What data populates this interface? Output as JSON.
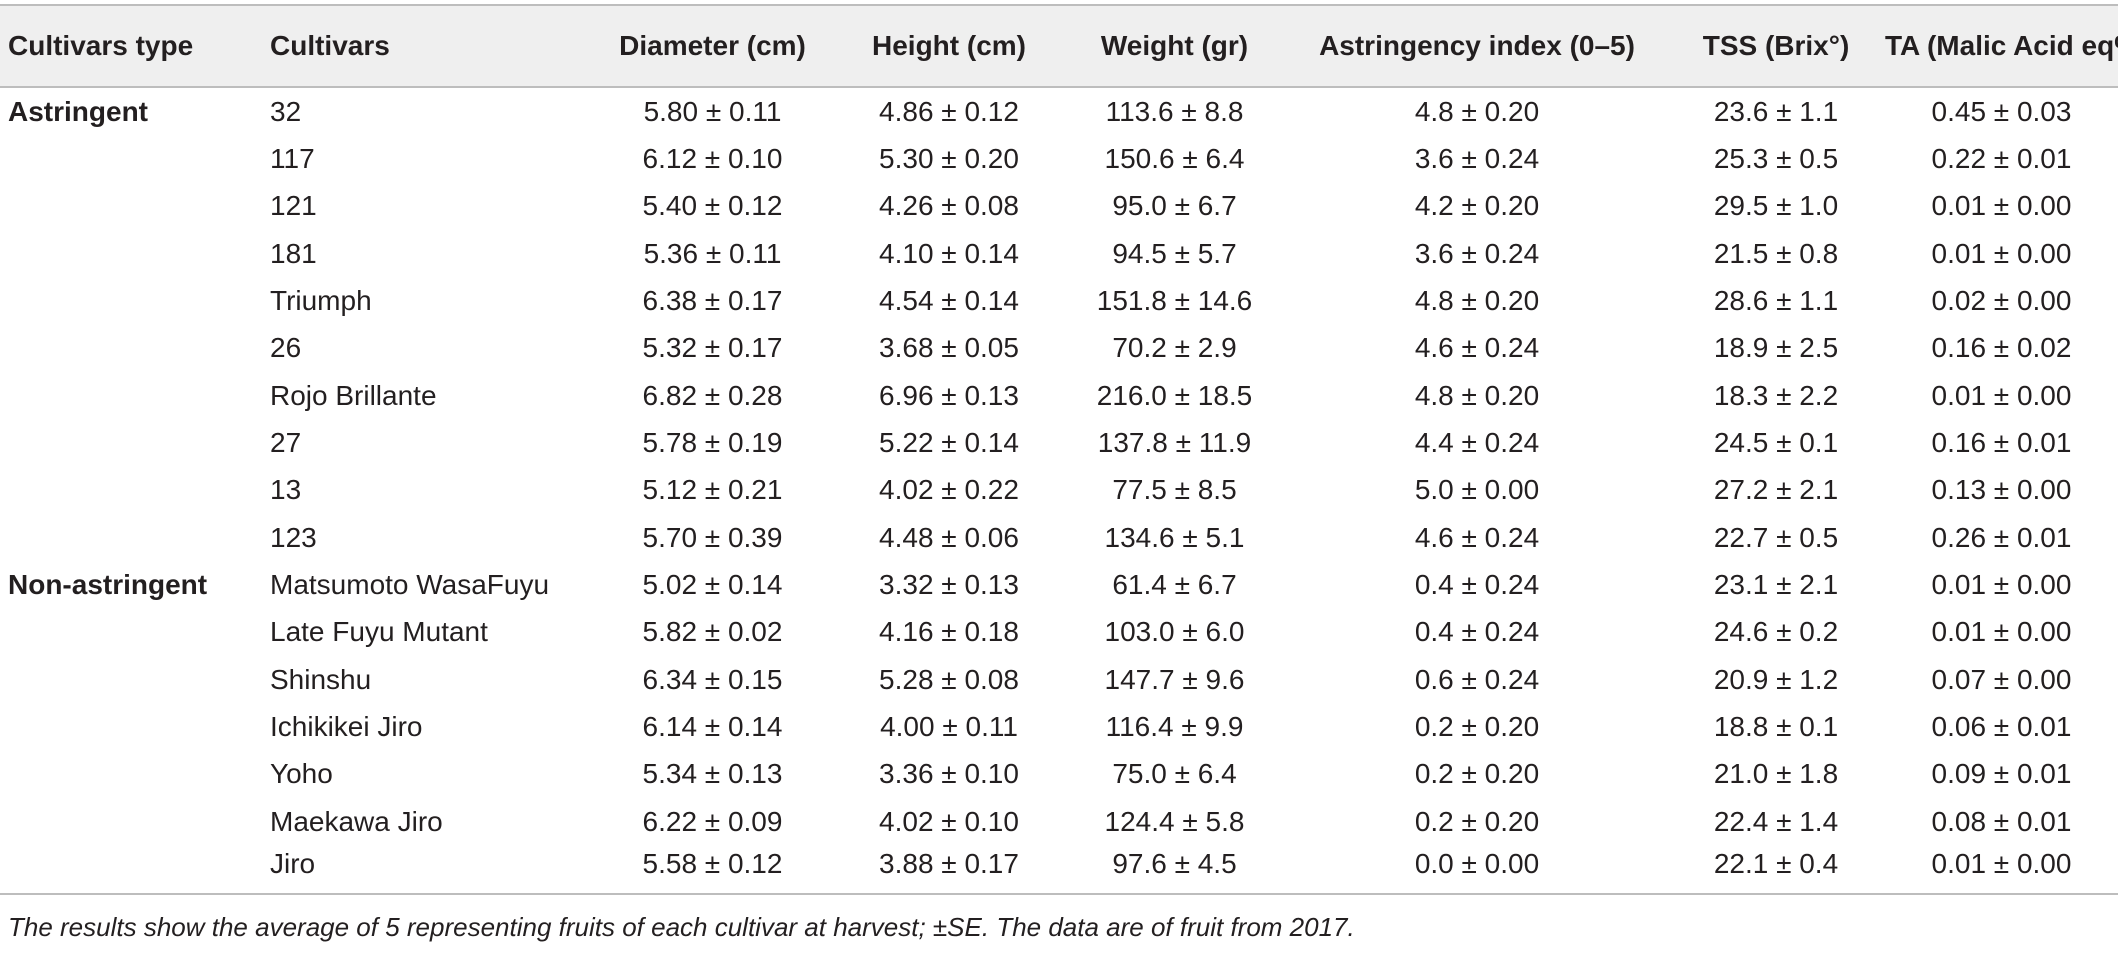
{
  "table": {
    "headers": {
      "cultivars_type": "Cultivars type",
      "cultivars": "Cultivars",
      "diameter": "Diameter (cm)",
      "height": "Height (cm)",
      "weight": "Weight (gr)",
      "astringency": "Astringency index (0–5)",
      "tss": "TSS (Brix°)",
      "ta": "TA (Malic Acid eq%)"
    },
    "rows": [
      {
        "type": "Astringent",
        "cultivar": "32",
        "diameter": "5.80 ± 0.11",
        "height": "4.86 ± 0.12",
        "weight": "113.6 ± 8.8",
        "astringency": "4.8 ± 0.20",
        "tss": "23.6 ± 1.1",
        "ta": "0.45 ± 0.03"
      },
      {
        "type": "",
        "cultivar": "117",
        "diameter": "6.12 ± 0.10",
        "height": "5.30 ± 0.20",
        "weight": "150.6 ± 6.4",
        "astringency": "3.6 ± 0.24",
        "tss": "25.3 ± 0.5",
        "ta": "0.22 ± 0.01"
      },
      {
        "type": "",
        "cultivar": "121",
        "diameter": "5.40 ± 0.12",
        "height": "4.26 ± 0.08",
        "weight": "95.0 ± 6.7",
        "astringency": "4.2 ± 0.20",
        "tss": "29.5 ± 1.0",
        "ta": "0.01 ± 0.00"
      },
      {
        "type": "",
        "cultivar": "181",
        "diameter": "5.36 ± 0.11",
        "height": "4.10 ± 0.14",
        "weight": "94.5 ± 5.7",
        "astringency": "3.6 ± 0.24",
        "tss": "21.5 ± 0.8",
        "ta": "0.01 ± 0.00"
      },
      {
        "type": "",
        "cultivar": "Triumph",
        "diameter": "6.38 ± 0.17",
        "height": "4.54 ± 0.14",
        "weight": "151.8 ± 14.6",
        "astringency": "4.8 ± 0.20",
        "tss": "28.6 ± 1.1",
        "ta": "0.02 ± 0.00"
      },
      {
        "type": "",
        "cultivar": "26",
        "diameter": "5.32 ± 0.17",
        "height": "3.68 ± 0.05",
        "weight": "70.2 ± 2.9",
        "astringency": "4.6 ± 0.24",
        "tss": "18.9 ± 2.5",
        "ta": "0.16 ± 0.02"
      },
      {
        "type": "",
        "cultivar": "Rojo Brillante",
        "diameter": "6.82 ± 0.28",
        "height": "6.96 ± 0.13",
        "weight": "216.0 ± 18.5",
        "astringency": "4.8 ± 0.20",
        "tss": "18.3 ± 2.2",
        "ta": "0.01 ± 0.00"
      },
      {
        "type": "",
        "cultivar": "27",
        "diameter": "5.78 ± 0.19",
        "height": "5.22 ± 0.14",
        "weight": "137.8 ± 11.9",
        "astringency": "4.4 ± 0.24",
        "tss": "24.5 ± 0.1",
        "ta": "0.16 ± 0.01"
      },
      {
        "type": "",
        "cultivar": "13",
        "diameter": "5.12 ± 0.21",
        "height": "4.02 ± 0.22",
        "weight": "77.5 ± 8.5",
        "astringency": "5.0 ± 0.00",
        "tss": "27.2 ± 2.1",
        "ta": "0.13 ± 0.00"
      },
      {
        "type": "",
        "cultivar": "123",
        "diameter": "5.70 ± 0.39",
        "height": "4.48 ± 0.06",
        "weight": "134.6 ± 5.1",
        "astringency": "4.6 ± 0.24",
        "tss": "22.7 ± 0.5",
        "ta": "0.26 ± 0.01"
      },
      {
        "type": "Non-astringent",
        "cultivar": "Matsumoto WasaFuyu",
        "diameter": "5.02 ± 0.14",
        "height": "3.32 ± 0.13",
        "weight": "61.4 ± 6.7",
        "astringency": "0.4 ± 0.24",
        "tss": "23.1 ± 2.1",
        "ta": "0.01 ± 0.00"
      },
      {
        "type": "",
        "cultivar": "Late Fuyu Mutant",
        "diameter": "5.82 ± 0.02",
        "height": "4.16 ± 0.18",
        "weight": "103.0 ± 6.0",
        "astringency": "0.4 ± 0.24",
        "tss": "24.6 ± 0.2",
        "ta": "0.01 ± 0.00"
      },
      {
        "type": "",
        "cultivar": "Shinshu",
        "diameter": "6.34 ± 0.15",
        "height": "5.28 ± 0.08",
        "weight": "147.7 ± 9.6",
        "astringency": "0.6 ± 0.24",
        "tss": "20.9 ± 1.2",
        "ta": "0.07 ± 0.00"
      },
      {
        "type": "",
        "cultivar": "Ichikikei Jiro",
        "diameter": "6.14 ± 0.14",
        "height": "4.00 ± 0.11",
        "weight": "116.4 ± 9.9",
        "astringency": "0.2 ± 0.20",
        "tss": "18.8 ± 0.1",
        "ta": "0.06 ± 0.01"
      },
      {
        "type": "",
        "cultivar": "Yoho",
        "diameter": "5.34 ± 0.13",
        "height": "3.36 ± 0.10",
        "weight": "75.0 ± 6.4",
        "astringency": "0.2 ± 0.20",
        "tss": "21.0 ± 1.8",
        "ta": "0.09 ± 0.01"
      },
      {
        "type": "",
        "cultivar": "Maekawa Jiro",
        "diameter": "6.22 ± 0.09",
        "height": "4.02 ± 0.10",
        "weight": "124.4 ± 5.8",
        "astringency": "0.2 ± 0.20",
        "tss": "22.4 ± 1.4",
        "ta": "0.08 ± 0.01"
      },
      {
        "type": "",
        "cultivar": "Jiro",
        "diameter": "5.58 ± 0.12",
        "height": "3.88 ± 0.17",
        "weight": "97.6 ± 4.5",
        "astringency": "0.0 ± 0.00",
        "tss": "22.1 ± 0.4",
        "ta": "0.01 ± 0.00"
      }
    ]
  },
  "footnote": "The results show the average of 5 representing fruits of each cultivar at harvest; ±SE. The data are of fruit from 2017."
}
